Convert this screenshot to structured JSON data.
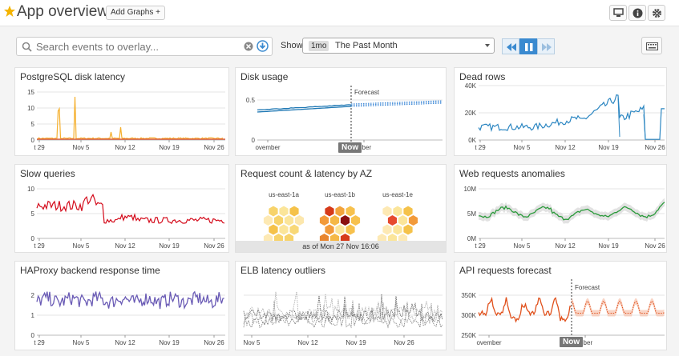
{
  "header": {
    "title": "App overview",
    "add_graphs": "Add Graphs +"
  },
  "toolbar": {
    "search_placeholder": "Search events to overlay...",
    "show_label": "Show",
    "time_badge": "1mo",
    "time_value": "The Past Month"
  },
  "colors": {
    "accent": "#3a8ad0",
    "star": "#f4b400"
  },
  "panels": {
    "postgres": {
      "title": "PostgreSQL disk latency",
      "xticks": [
        "t 29",
        "Nov 5",
        "Nov 12",
        "Nov 19",
        "Nov 26"
      ],
      "yticks": [
        "15",
        "10",
        "5",
        "0"
      ]
    },
    "disk": {
      "title": "Disk usage",
      "xticks": [
        "ovember",
        "mber"
      ],
      "yticks": [
        "0.5",
        "0"
      ],
      "forecast": "Forecast",
      "now": "Now"
    },
    "deadrows": {
      "title": "Dead rows",
      "xticks": [
        "t 29",
        "Nov 5",
        "Nov 12",
        "Nov 19",
        "Nov 26"
      ],
      "yticks": [
        "40K",
        "20K",
        "0K"
      ]
    },
    "slow": {
      "title": "Slow queries",
      "xticks": [
        "t 29",
        "Nov 5",
        "Nov 12",
        "Nov 19",
        "Nov 26"
      ],
      "yticks": [
        "10",
        "5",
        "0"
      ]
    },
    "request": {
      "title": "Request count & latency by AZ",
      "zones": [
        "us-east-1a",
        "us-east-1b",
        "us-east-1e"
      ],
      "asof": "as of Mon 27 Nov 16:06"
    },
    "web": {
      "title": "Web requests anomalies",
      "xticks": [
        "t 29",
        "Nov 5",
        "Nov 12",
        "Nov 19",
        "Nov 26"
      ],
      "yticks": [
        "10M",
        "5M",
        "0M"
      ]
    },
    "haproxy": {
      "title": "HAProxy backend response time",
      "xticks": [
        "t 29",
        "Nov 5",
        "Nov 12",
        "Nov 19",
        "Nov 26"
      ],
      "yticks": [
        "2",
        "1",
        "0"
      ]
    },
    "elb": {
      "title": "ELB latency outliers",
      "xticks": [
        "Nov 5",
        "Nov 12",
        "Nov 19",
        "Nov 26"
      ]
    },
    "api": {
      "title": "API requests forecast",
      "xticks": [
        "ovember",
        "mber"
      ],
      "yticks": [
        "350K",
        "300K",
        "250K"
      ],
      "forecast": "Forecast",
      "now": "Now"
    }
  }
}
